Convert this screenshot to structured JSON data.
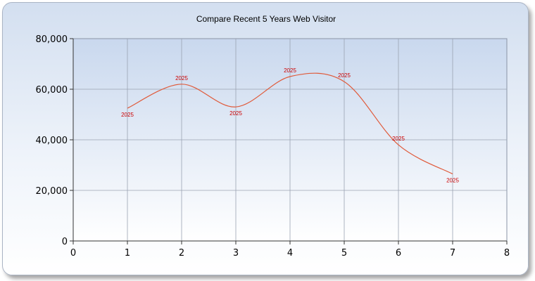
{
  "chart_data": {
    "type": "line",
    "title": "Compare Recent 5 Years Web Visitor",
    "xlabel": "",
    "ylabel": "",
    "xlim": [
      0,
      8
    ],
    "ylim": [
      0,
      80000
    ],
    "x_ticks": [
      0,
      1,
      2,
      3,
      4,
      5,
      6,
      7,
      8
    ],
    "y_ticks": [
      0,
      20000,
      40000,
      60000,
      80000
    ],
    "x_tick_labels": [
      "0",
      "1",
      "2",
      "3",
      "4",
      "5",
      "6",
      "7",
      "8"
    ],
    "y_tick_labels": [
      "0",
      "20,000",
      "40,000",
      "60,000",
      "80,000"
    ],
    "grid": true,
    "smooth": true,
    "line_color": "#e05a3a",
    "label_color": "#cc0000",
    "series": [
      {
        "x": [
          1,
          2,
          3,
          4,
          5,
          6,
          7
        ],
        "values": [
          52500,
          62000,
          53000,
          65000,
          63000,
          38000,
          26500
        ],
        "data_labels": [
          "2025",
          "2025",
          "2025",
          "2025",
          "2025",
          "2025",
          "2025"
        ]
      }
    ]
  }
}
